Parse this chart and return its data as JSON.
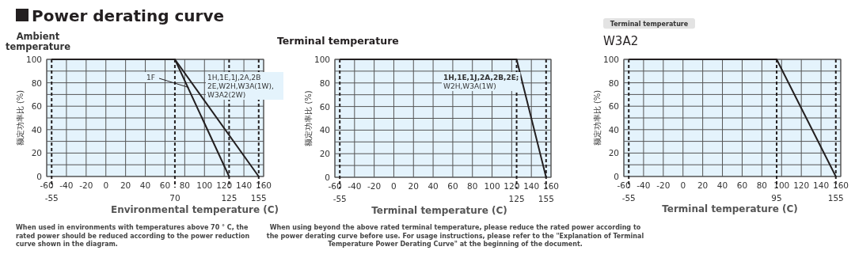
{
  "chart_data": [
    {
      "type": "line",
      "title": "Power derating curve",
      "subtitle": "Ambient temperature",
      "xlabel": "Environmental temperature (C)",
      "ylabel": "额定功率比 (%)",
      "xlim": [
        -60,
        160
      ],
      "ylim": [
        0,
        100
      ],
      "xticks": [
        -60,
        -40,
        -20,
        0,
        20,
        40,
        60,
        80,
        100,
        120,
        140,
        160
      ],
      "yticks": [
        0,
        {
          "value": 10,
          "label": null
        },
        20,
        {
          "value": 30,
          "label": null
        },
        40,
        {
          "value": 50,
          "label": null
        },
        60,
        {
          "value": 70,
          "label": null
        },
        80,
        {
          "value": 90,
          "label": null
        },
        100
      ],
      "grid": true,
      "legend": "right",
      "marker": "none",
      "line_style": "solid",
      "series": [
        {
          "name": "1F",
          "color": "#231f20",
          "x": [
            -55,
            70,
            125
          ],
          "values": [
            100,
            100,
            0
          ]
        },
        {
          "name": "1H,1E,1J,2A,2B 2E,W2H,W3A(1W), W3A2(2W)",
          "color": "#231f20",
          "x": [
            -55,
            70,
            155
          ],
          "values": [
            100,
            100,
            0
          ]
        }
      ],
      "ref_lines": [
        {
          "axis": "x",
          "value": -55,
          "label": "-55",
          "line_style": "dashed",
          "color": "#231f20"
        },
        {
          "axis": "x",
          "value": 70,
          "label": "70",
          "line_style": "dashed",
          "color": "#231f20"
        },
        {
          "axis": "x",
          "value": 125,
          "label": "125",
          "line_style": "dashed",
          "color": "#231f20"
        },
        {
          "axis": "x",
          "value": 155,
          "label": "155",
          "line_style": "dashed",
          "color": "#231f20"
        }
      ],
      "annotations": [
        "When used in environments with temperatures above 70 ° C, the rated power should be reduced according to the power reduction curve shown in the diagram."
      ]
    },
    {
      "type": "line",
      "title": "Terminal temperature",
      "xlabel": "Terminal temperature (C)",
      "ylabel": "额定功率比 (%)",
      "xlim": [
        -60,
        160
      ],
      "ylim": [
        0,
        100
      ],
      "xticks": [
        -60,
        -40,
        -20,
        0,
        20,
        40,
        60,
        80,
        100,
        120,
        140,
        160
      ],
      "yticks": [
        0,
        {
          "value": 10,
          "label": null
        },
        20,
        {
          "value": 30,
          "label": null
        },
        40,
        {
          "value": 50,
          "label": null
        },
        60,
        {
          "value": 70,
          "label": null
        },
        80,
        {
          "value": 90,
          "label": null
        },
        100
      ],
      "grid": true,
      "legend": "top right",
      "marker": "none",
      "line_style": "solid",
      "series": [
        {
          "name": "**1H,1E,1J,2A,2B,2E;** W2H,W3A(1W)",
          "color": "#231f20",
          "x": [
            -55,
            125,
            155
          ],
          "values": [
            100,
            100,
            0
          ]
        }
      ],
      "ref_lines": [
        {
          "axis": "x",
          "value": -55,
          "label": "-55",
          "line_style": "dashed",
          "color": "#231f20"
        },
        {
          "axis": "x",
          "value": 125,
          "label": "125",
          "line_style": "dashed",
          "color": "#231f20"
        },
        {
          "axis": "x",
          "value": 155,
          "label": "155",
          "line_style": "dashed",
          "color": "#231f20"
        }
      ],
      "annotations": [
        "When using beyond the above rated terminal temperature, please reduce the rated power according to the power derating curve before use. For usage instructions, please refer to the \"Explanation of Terminal Temperature Power Derating Curve\" at the beginning of the document."
      ]
    },
    {
      "type": "line",
      "title": "W3A2",
      "subtitle": "Terminal temperature",
      "xlabel": "Terminal temperature (C)",
      "ylabel": "额定功率比 (%)",
      "xlim": [
        -60,
        160
      ],
      "ylim": [
        0,
        100
      ],
      "xticks": [
        -60,
        -40,
        -20,
        0,
        20,
        40,
        60,
        80,
        100,
        120,
        140,
        160
      ],
      "yticks": [
        0,
        {
          "value": 10,
          "label": null
        },
        20,
        {
          "value": 30,
          "label": null
        },
        40,
        {
          "value": 50,
          "label": null
        },
        60,
        {
          "value": 70,
          "label": null
        },
        80,
        {
          "value": 90,
          "label": null
        },
        100
      ],
      "grid": true,
      "legend": false,
      "marker": "none",
      "line_style": "solid",
      "series": [
        {
          "color": "#231f20",
          "x": [
            -55,
            95,
            155
          ],
          "values": [
            100,
            100,
            0
          ]
        }
      ],
      "ref_lines": [
        {
          "axis": "x",
          "value": -55,
          "label": "-55",
          "line_style": "dashed",
          "color": "#231f20"
        },
        {
          "axis": "x",
          "value": 95,
          "label": "95",
          "line_style": "dashed",
          "color": "#231f20"
        },
        {
          "axis": "x",
          "value": 155,
          "label": "155",
          "line_style": "dashed",
          "color": "#231f20"
        }
      ]
    }
  ]
}
